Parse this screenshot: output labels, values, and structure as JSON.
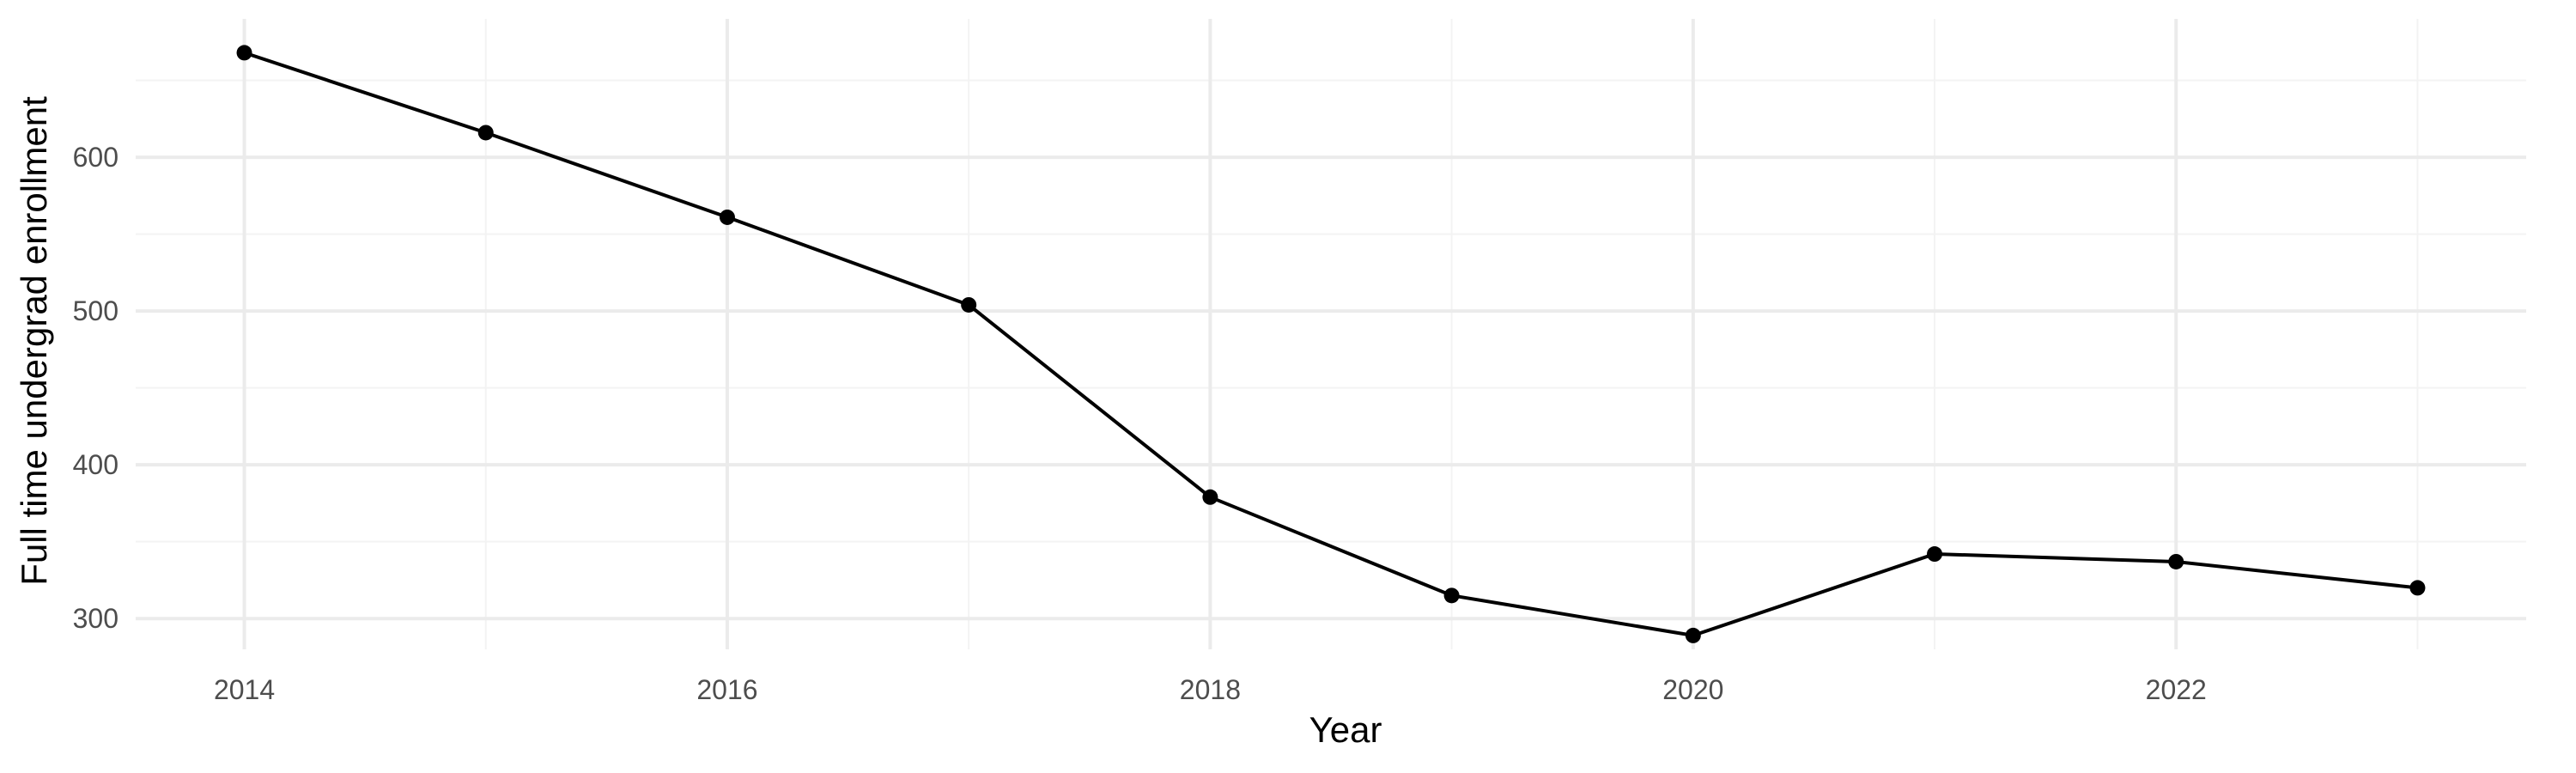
{
  "chart_data": {
    "type": "line",
    "title": "",
    "xlabel": "Year",
    "ylabel": "Full time undergrad enrollment",
    "x": [
      2014,
      2015,
      2016,
      2017,
      2018,
      2019,
      2020,
      2021,
      2022,
      2023
    ],
    "series": [
      {
        "values": [
          668,
          616,
          561,
          504,
          379,
          315,
          289,
          342,
          337,
          320
        ]
      }
    ],
    "x_ticks": [
      "2014",
      "2016",
      "2018",
      "2020",
      "2022"
    ],
    "y_ticks": [
      "300",
      "400",
      "500",
      "600"
    ],
    "xlim": [
      2013.55,
      2023.45
    ],
    "ylim": [
      280,
      690
    ],
    "grid": true,
    "colors": {
      "line": "#000000",
      "grid_major": "#ebebeb",
      "grid_minor": "#f3f3f3",
      "tick_text": "#4d4d4d"
    }
  }
}
